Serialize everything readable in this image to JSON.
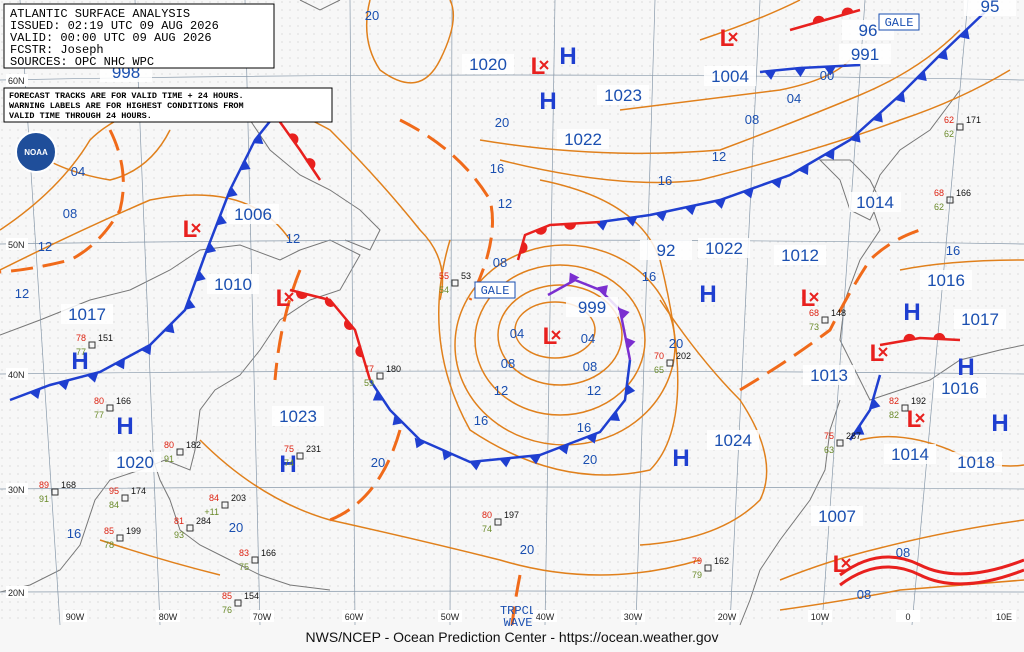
{
  "header": {
    "lines": [
      "ATLANTIC SURFACE ANALYSIS",
      "ISSUED: 02:19 UTC 09 AUG 2026",
      "VALID: 00:00 UTC 09 AUG 2026",
      "FCSTR:  Joseph",
      "SOURCES: OPC NHC WPC"
    ]
  },
  "notice": [
    "FORECAST TRACKS ARE FOR VALID TIME + 24 HOURS.",
    "WARNING LABELS ARE FOR HIGHEST CONDITIONS FROM",
    "VALID TIME THROUGH 24 HOURS."
  ],
  "logo": "NOAA",
  "footer": "NWS/NCEP - Ocean Prediction Center - https://ocean.weather.gov",
  "high_symbol": "H",
  "low_symbol": "L",
  "pressure_centers": [
    "998",
    "1020",
    "1023",
    "1022",
    "1004",
    "991",
    "1006",
    "1010",
    "1017",
    "1014",
    "1012",
    "1022",
    "92",
    "999",
    "1016",
    "1017",
    "1013",
    "1016",
    "1023",
    "1024",
    "1020",
    "1014",
    "1018",
    "1007",
    "96",
    "95"
  ],
  "isobar_labels": [
    "20",
    "04",
    "08",
    "12",
    "12",
    "12",
    "20",
    "16",
    "12",
    "08",
    "04",
    "08",
    "12",
    "16",
    "16",
    "12",
    "08",
    "04",
    "20",
    "16",
    "16",
    "12",
    "08",
    "04",
    "00",
    "20",
    "20",
    "20",
    "20",
    "16",
    "16",
    "08",
    "08"
  ],
  "warnings": [
    "GALE",
    "GALE",
    "TRPCL",
    "WAVE"
  ],
  "lat_labels": [
    "60N",
    "50N",
    "40N",
    "30N",
    "20N"
  ],
  "lon_labels": [
    "90W",
    "80W",
    "70W",
    "60W",
    "50W",
    "40W",
    "30W",
    "20W",
    "10W",
    "0",
    "10E"
  ],
  "stations": [
    {
      "temp": "80",
      "pressure": "166",
      "dew": "77"
    },
    {
      "temp": "80",
      "pressure": "182",
      "dew": "91"
    },
    {
      "temp": "95",
      "pressure": "174",
      "dew": "84"
    },
    {
      "temp": "85",
      "pressure": "199",
      "dew": "78"
    },
    {
      "temp": "81",
      "pressure": "284",
      "dew": "93"
    },
    {
      "temp": "84",
      "pressure": "203",
      "dew": "+11"
    },
    {
      "temp": "83",
      "pressure": "166",
      "dew": "75"
    },
    {
      "temp": "77",
      "pressure": "180",
      "dew": "59"
    },
    {
      "temp": "75",
      "pressure": "231",
      "dew": "74"
    },
    {
      "temp": "80",
      "pressure": "197",
      "dew": "74"
    },
    {
      "temp": "70",
      "pressure": "202",
      "dew": "65"
    },
    {
      "temp": "55",
      "pressure": "53",
      "dew": "54"
    },
    {
      "temp": "78",
      "pressure": "151",
      "dew": "77"
    },
    {
      "temp": "68",
      "pressure": "148",
      "dew": "73"
    },
    {
      "temp": "75",
      "pressure": "287",
      "dew": "63"
    },
    {
      "temp": "62",
      "pressure": "171",
      "dew": "62"
    },
    {
      "temp": "68",
      "pressure": "166",
      "dew": "62"
    },
    {
      "temp": "82",
      "pressure": "192",
      "dew": "82"
    },
    {
      "temp": "79",
      "pressure": "162",
      "dew": "79"
    },
    {
      "temp": "85",
      "pressure": "154",
      "dew": "76"
    },
    {
      "temp": "89",
      "pressure": "168",
      "dew": "91"
    }
  ]
}
